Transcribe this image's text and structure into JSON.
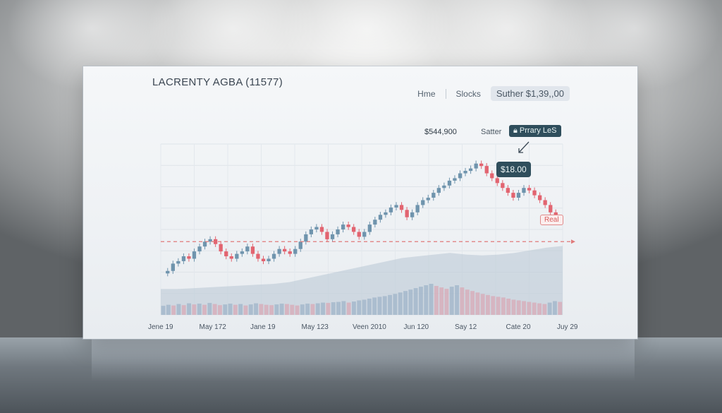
{
  "header": {
    "title": "LACRENTY AGBA (11577)",
    "nav": [
      "Hme",
      "Slocks"
    ],
    "price_box": "Suther $1,39,,00"
  },
  "annotations": {
    "peak_value": "$544,900",
    "satter": "Satter",
    "primary_label": "Prrary LeS",
    "price_tag": "$18.00",
    "real_tag": "Real"
  },
  "colors": {
    "up": "#6f94ad",
    "down": "#e26470",
    "reference_line": "#e07a7a",
    "volume_area": "#b8c6d4",
    "accent_dark": "#2f4e5c"
  },
  "icons": {
    "primary_label_icon": "lock-icon",
    "pointer_arrow": "arrow-down-left-icon"
  },
  "chart_data": {
    "type": "candlestick",
    "x_tick_labels": [
      "Jene 19",
      "May 172",
      "Jane 19",
      "May 123",
      "Veen 2010",
      "Jun 120",
      "Say 12",
      "Cate 20",
      "Juy 29"
    ],
    "close_series": [
      18,
      21,
      22,
      24,
      23,
      26,
      28,
      30,
      31,
      29,
      26,
      24,
      23,
      25,
      26,
      28,
      25,
      23,
      22,
      23,
      25,
      27,
      26,
      25,
      27,
      30,
      33,
      35,
      36,
      34,
      31,
      33,
      35,
      37,
      36,
      34,
      32,
      34,
      37,
      39,
      41,
      42,
      44,
      45,
      43,
      40,
      42,
      45,
      47,
      48,
      50,
      52,
      53,
      55,
      56,
      58,
      59,
      60,
      62,
      61,
      58,
      56,
      54,
      52,
      50,
      48,
      50,
      52,
      51,
      49,
      47,
      45,
      42,
      40
    ],
    "reference_line_value": 30,
    "volume_area": [
      30,
      30,
      31,
      32,
      33,
      34,
      35,
      36,
      38,
      42,
      46,
      50,
      54,
      58,
      62,
      66,
      68,
      70,
      72,
      70,
      69,
      70,
      72,
      75,
      78,
      80
    ],
    "volume_bars": [
      25,
      28,
      26,
      30,
      27,
      32,
      29,
      31,
      28,
      33,
      30,
      27,
      29,
      31,
      28,
      30,
      26,
      29,
      32,
      30,
      28,
      27,
      29,
      31,
      30,
      28,
      26,
      29,
      31,
      30,
      32,
      34,
      33,
      35,
      36,
      38,
      34,
      37,
      40,
      42,
      45,
      48,
      50,
      52,
      55,
      58,
      62,
      66,
      70,
      74,
      78,
      82,
      86,
      80,
      76,
      72,
      78,
      82,
      76,
      70,
      66,
      62,
      58,
      55,
      52,
      50,
      48,
      45,
      42,
      40,
      38,
      36,
      34,
      32,
      30,
      34,
      38,
      36
    ],
    "ylim": [
      0,
      70
    ],
    "grid": true
  }
}
